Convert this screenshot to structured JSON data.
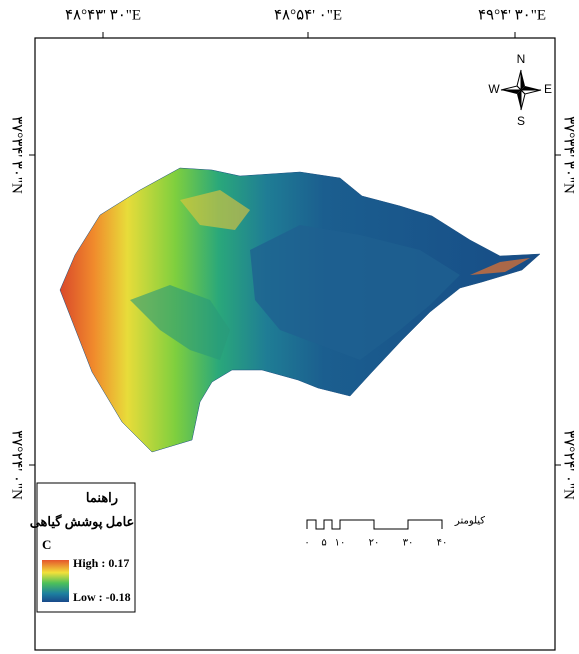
{
  "graticule": {
    "top": [
      "۴۸°۴۳' ۳۰\"E",
      "۴۸°۵۴' ۰\"E",
      "۴۹°۴' ۳۰\"E"
    ],
    "left": [
      "۳۷°۳۴' ۳۰\"N",
      "۳۷°۲۴' ۰\"N"
    ],
    "right": [
      "۳۷°۳۴' ۳۰\"N",
      "۳۷°۲۴' ۰\"N"
    ]
  },
  "compass": {
    "n": "N",
    "e": "E",
    "s": "S",
    "w": "W"
  },
  "legend": {
    "title": "راهنما",
    "subtitle": "عامل پوشش گیاهی",
    "layer": "C",
    "high": "High : 0.17",
    "low": "Low : -0.18"
  },
  "scale_bar": {
    "unit": "کیلومتر",
    "ticks": [
      "۰",
      "۵",
      "۱۰",
      "۲۰",
      "۳۰",
      "۴۰"
    ]
  }
}
